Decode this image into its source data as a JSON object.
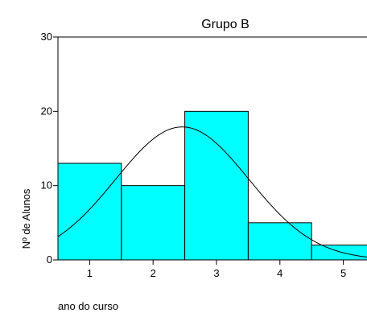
{
  "chart_data": {
    "type": "bar",
    "title": "Grupo B",
    "xlabel": "ano do curso",
    "ylabel": "Nº de Alunos",
    "categories": [
      "1",
      "2",
      "3",
      "4",
      "5"
    ],
    "values": [
      13,
      10,
      20,
      5,
      2
    ],
    "ylim": [
      0,
      30
    ],
    "yticks": [
      0,
      10,
      20,
      30
    ],
    "xlim": [
      0.5,
      5.5
    ],
    "bar_color": "#00FFFF",
    "grid": false,
    "normal_curve": {
      "mean": 2.46,
      "sd": 1.05,
      "peak": 17.9
    }
  }
}
